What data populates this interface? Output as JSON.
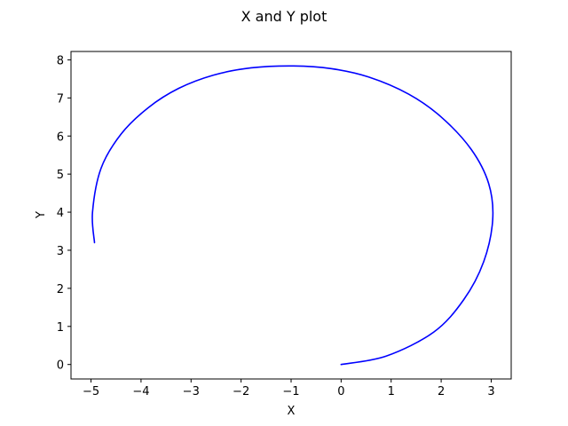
{
  "chart_data": {
    "type": "line",
    "title": "X and Y plot",
    "xlabel": "X",
    "ylabel": "Y",
    "xlim": [
      -5.4,
      3.4
    ],
    "ylim": [
      -0.38,
      8.22
    ],
    "xticks": [
      -5,
      -4,
      -3,
      -2,
      -1,
      0,
      1,
      2,
      3
    ],
    "xtick_labels": [
      "−5",
      "−4",
      "−3",
      "−2",
      "−1",
      "0",
      "1",
      "2",
      "3"
    ],
    "yticks": [
      0,
      1,
      2,
      3,
      4,
      5,
      6,
      7,
      8
    ],
    "ytick_labels": [
      "0",
      "1",
      "2",
      "3",
      "4",
      "5",
      "6",
      "7",
      "8"
    ],
    "grid": false,
    "legend": "none",
    "series": [
      {
        "color": "#0000ff",
        "x": [
          0.0,
          0.9,
          1.85,
          2.45,
          2.85,
          3.03,
          2.95,
          2.6,
          2.0,
          1.35,
          0.55,
          -0.2,
          -0.95,
          -1.8,
          -2.55,
          -3.25,
          -3.85,
          -4.4,
          -4.8,
          -4.97,
          -4.93
        ],
        "y": [
          0.0,
          0.22,
          0.85,
          1.7,
          2.7,
          3.8,
          4.75,
          5.65,
          6.5,
          7.1,
          7.55,
          7.77,
          7.84,
          7.79,
          7.6,
          7.25,
          6.75,
          6.05,
          5.15,
          4.0,
          3.2
        ]
      }
    ]
  }
}
